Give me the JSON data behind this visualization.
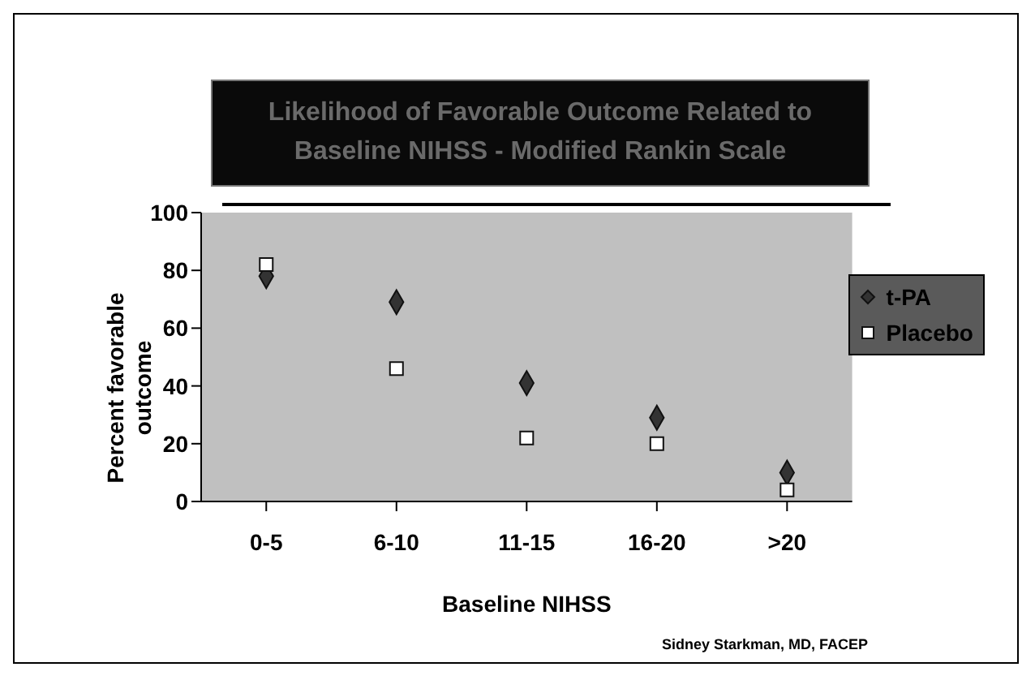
{
  "chart_data": {
    "type": "scatter",
    "title": "Likelihood of Favorable Outcome Related to Baseline NIHSS - Modified Rankin Scale",
    "xlabel": "Baseline NIHSS",
    "ylabel": "Percent favorable outcome",
    "categories": [
      "0-5",
      "6-10",
      "11-15",
      "16-20",
      ">20"
    ],
    "series": [
      {
        "name": "t-PA",
        "color": "#333333",
        "marker": "diamond",
        "values": [
          78,
          69,
          41,
          29,
          10
        ]
      },
      {
        "name": "Placebo",
        "color": "#ffffff",
        "marker": "square",
        "values": [
          82,
          46,
          22,
          20,
          4
        ]
      }
    ],
    "ylim": [
      0,
      100
    ],
    "yticks": [
      0,
      20,
      40,
      60,
      80,
      100
    ],
    "grid": false,
    "legend": "right",
    "annotations": [
      "Sidney Starkman, MD, FACEP"
    ]
  }
}
